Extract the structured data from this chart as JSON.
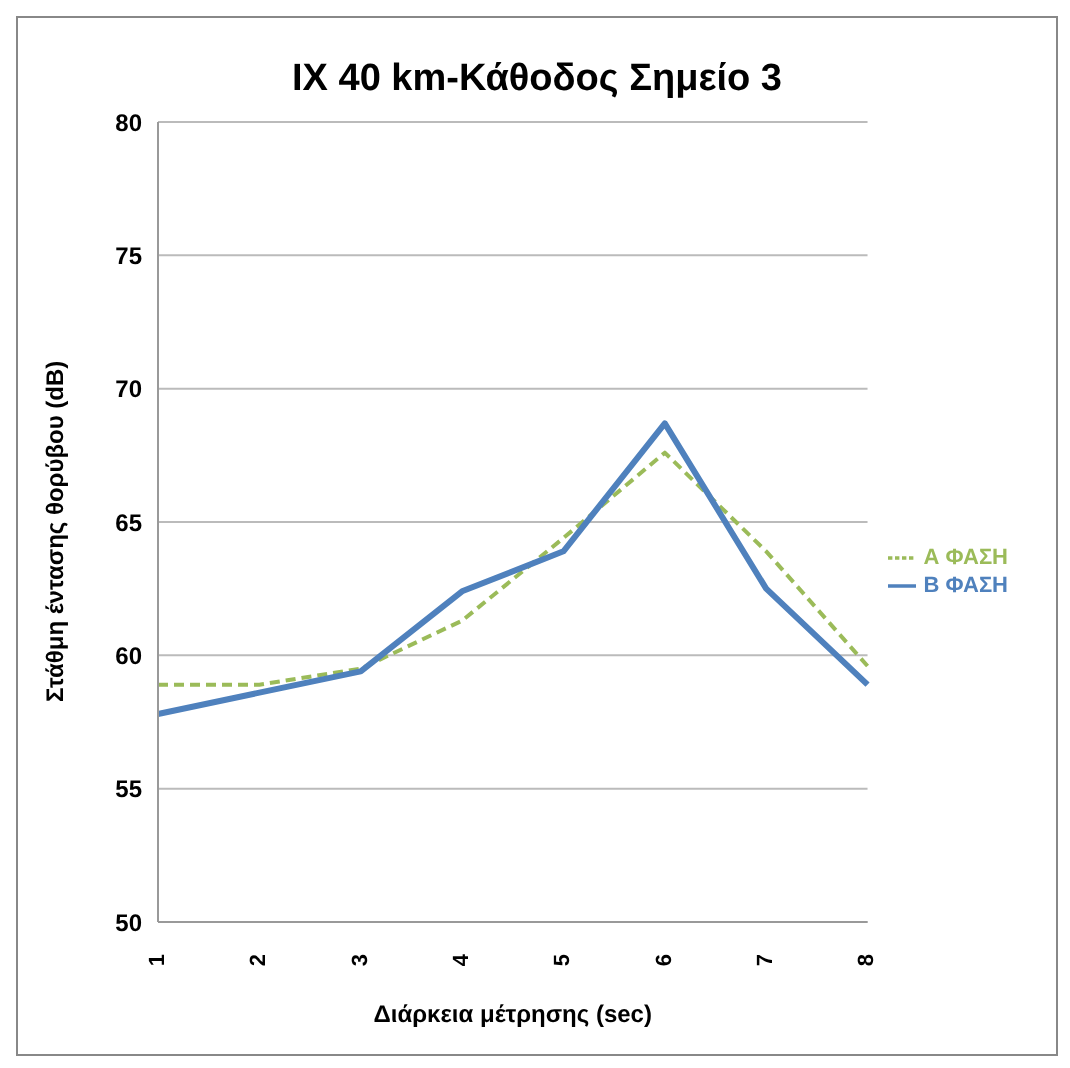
{
  "chart_data": {
    "type": "line",
    "title": "IX 40 km-Κάθοδος Σημείο 3",
    "xlabel": "Διάρκεια μέτρησης (sec)",
    "ylabel": "Στάθμη έντασης θορύβου (dB)",
    "categories": [
      "1",
      "2",
      "3",
      "4",
      "5",
      "6",
      "7",
      "8"
    ],
    "series": [
      {
        "name": "Α ΦΑΣΗ",
        "color": "#9bbb59",
        "line_style": "dashed",
        "values": [
          58.9,
          58.9,
          59.5,
          61.3,
          64.4,
          67.6,
          63.9,
          59.6
        ]
      },
      {
        "name": "Β ΦΑΣΗ",
        "color": "#4f81bd",
        "line_style": "solid",
        "values": [
          57.8,
          58.6,
          59.4,
          62.4,
          63.9,
          68.7,
          62.5,
          58.9
        ]
      }
    ],
    "ylim": [
      50,
      80
    ],
    "yticks": [
      50,
      55,
      60,
      65,
      70,
      75,
      80
    ],
    "grid": "y",
    "legend": "right",
    "marker": "none"
  }
}
